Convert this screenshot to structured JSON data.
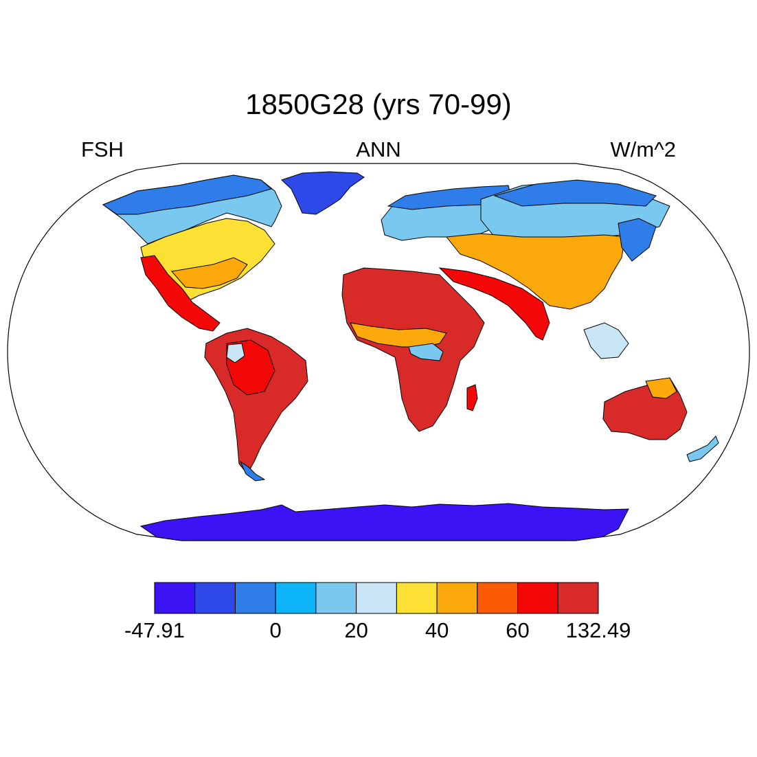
{
  "title": "1850G28 (yrs 70-99)",
  "left_label": "FSH",
  "center_label": "ANN",
  "right_label": "W/m^2",
  "colorbar": {
    "colors": [
      "#3c13f5",
      "#2d4ae8",
      "#2f7de9",
      "#0db4f8",
      "#79c8f0",
      "#c8e6f6",
      "#fce033",
      "#fba80b",
      "#fb5a04",
      "#f30707",
      "#d92a2a"
    ],
    "tick_labels": [
      "-47.91",
      "0",
      "20",
      "40",
      "60",
      "132.49"
    ]
  },
  "map": {
    "projection": "robinson",
    "colors": {
      "antarctica": "#3c13f5",
      "greenland": "#2d4ae8",
      "boreal": "#79c8f0",
      "subarctic": "#2f7de9",
      "temperate": "#fce033",
      "warm": "#fba80b",
      "hot": "#f30707",
      "tropical": "#d92a2a",
      "amazon_core": "#c8e6f6",
      "coastline": "#000000"
    }
  }
}
